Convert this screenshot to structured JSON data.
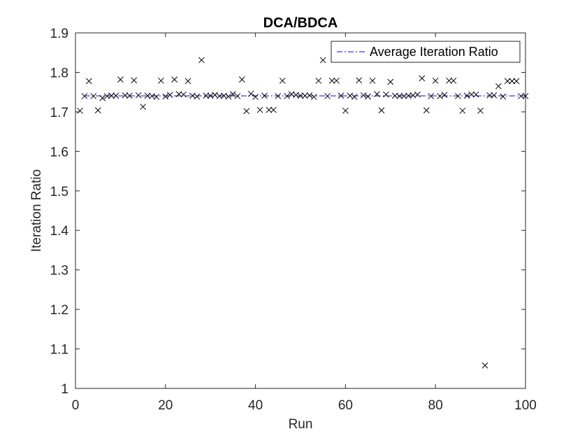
{
  "chart_data": {
    "type": "scatter",
    "title": "DCA/BDCA",
    "xlabel": "Run",
    "ylabel": "Iteration Ratio",
    "xlim": [
      0,
      100
    ],
    "ylim": [
      1,
      1.9
    ],
    "xticks": [
      0,
      20,
      40,
      60,
      80,
      100
    ],
    "yticks": [
      1,
      1.1,
      1.2,
      1.3,
      1.4,
      1.5,
      1.6,
      1.7,
      1.8,
      1.9
    ],
    "xtick_labels": [
      "0",
      "20",
      "40",
      "60",
      "80",
      "100"
    ],
    "ytick_labels": [
      "1",
      "1.1",
      "1.2",
      "1.3",
      "1.4",
      "1.5",
      "1.6",
      "1.7",
      "1.8",
      "1.9"
    ],
    "grid": false,
    "legend_position": "top-right",
    "series": [
      {
        "marker": "x",
        "color": "#000000",
        "x": [
          1,
          2,
          3,
          4,
          5,
          6,
          7,
          8,
          9,
          10,
          11,
          12,
          13,
          14,
          15,
          16,
          17,
          18,
          19,
          20,
          21,
          22,
          23,
          24,
          25,
          26,
          27,
          28,
          29,
          30,
          31,
          32,
          33,
          34,
          35,
          36,
          37,
          38,
          39,
          40,
          41,
          42,
          43,
          44,
          45,
          46,
          47,
          48,
          49,
          50,
          51,
          52,
          53,
          54,
          55,
          56,
          57,
          58,
          59,
          60,
          61,
          62,
          63,
          64,
          65,
          66,
          67,
          68,
          69,
          70,
          71,
          72,
          73,
          74,
          75,
          76,
          77,
          78,
          79,
          80,
          81,
          82,
          83,
          84,
          85,
          86,
          87,
          88,
          89,
          90,
          91,
          92,
          93,
          94,
          95,
          96,
          97,
          98,
          99,
          100
        ],
        "y": [
          1.703,
          1.74,
          1.778,
          1.74,
          1.704,
          1.735,
          1.74,
          1.741,
          1.741,
          1.782,
          1.742,
          1.741,
          1.78,
          1.742,
          1.713,
          1.741,
          1.74,
          1.738,
          1.779,
          1.739,
          1.743,
          1.782,
          1.745,
          1.744,
          1.778,
          1.741,
          1.739,
          1.831,
          1.741,
          1.741,
          1.743,
          1.74,
          1.741,
          1.739,
          1.745,
          1.74,
          1.782,
          1.702,
          1.746,
          1.738,
          1.705,
          1.741,
          1.705,
          1.705,
          1.74,
          1.779,
          1.74,
          1.745,
          1.743,
          1.741,
          1.741,
          1.742,
          1.738,
          1.779,
          1.831,
          1.74,
          1.779,
          1.779,
          1.741,
          1.703,
          1.741,
          1.738,
          1.78,
          1.742,
          1.739,
          1.779,
          1.745,
          1.704,
          1.744,
          1.776,
          1.741,
          1.74,
          1.74,
          1.741,
          1.742,
          1.744,
          1.785,
          1.704,
          1.74,
          1.779,
          1.74,
          1.743,
          1.779,
          1.779,
          1.74,
          1.703,
          1.741,
          1.744,
          1.744,
          1.703,
          1.058,
          1.742,
          1.742,
          1.765,
          1.739,
          1.778,
          1.778,
          1.778,
          1.74,
          1.74
        ]
      },
      {
        "name": "Average Iteration Ratio",
        "style": "dash-dot",
        "color": "#0000ff",
        "x": [
          2,
          100
        ],
        "y": [
          1.7405,
          1.7405
        ]
      }
    ]
  }
}
